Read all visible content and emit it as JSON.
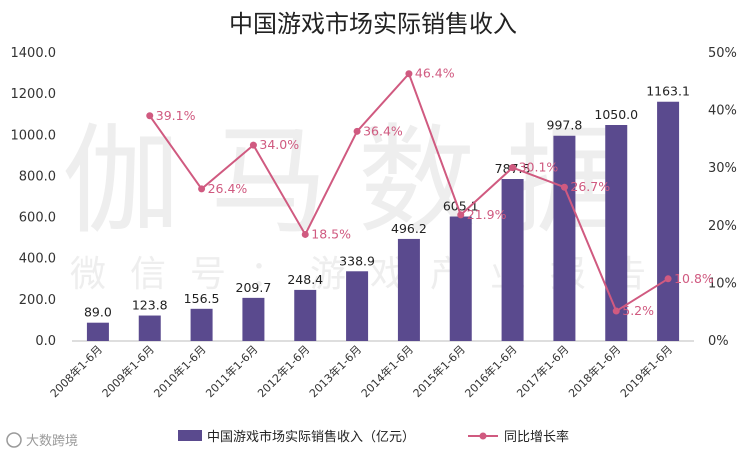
{
  "watermark": {
    "main": "伽马数据",
    "sub": "微信号：游戏产业报告",
    "corner": "大数跨境"
  },
  "chart_data": {
    "type": "bar",
    "title": "中国游戏市场实际销售收入",
    "categories": [
      "2008年1-6月",
      "2009年1-6月",
      "2010年1-6月",
      "2011年1-6月",
      "2012年1-6月",
      "2013年1-6月",
      "2014年1-6月",
      "2015年1-6月",
      "2016年1-6月",
      "2017年1-6月",
      "2018年1-6月",
      "2019年1-6月"
    ],
    "series": [
      {
        "name": "中国游戏市场实际销售收入（亿元）",
        "type": "bar",
        "axis": "left",
        "color": "#5a4a8e",
        "values": [
          89.0,
          123.8,
          156.5,
          209.7,
          248.4,
          338.9,
          496.2,
          605.1,
          787.5,
          997.8,
          1050.0,
          1163.1
        ],
        "labels": [
          "89.0",
          "123.8",
          "156.5",
          "209.7",
          "248.4",
          "338.9",
          "496.2",
          "605.1",
          "787.5",
          "997.8",
          "1050.0",
          "1163.1"
        ]
      },
      {
        "name": "同比增长率",
        "type": "line",
        "axis": "right",
        "color": "#d05a80",
        "values": [
          null,
          39.1,
          26.4,
          34.0,
          18.5,
          36.4,
          46.4,
          21.9,
          30.1,
          26.7,
          5.2,
          10.8
        ],
        "labels": [
          "",
          "39.1%",
          "26.4%",
          "34.0%",
          "18.5%",
          "36.4%",
          "46.4%",
          "21.9%",
          "30.1%",
          "26.7%",
          "5.2%",
          "10.8%"
        ]
      }
    ],
    "ylim_left": [
      0,
      1400
    ],
    "ylim_right": [
      0,
      50
    ],
    "yticks_left": [
      "0.0",
      "200.0",
      "400.0",
      "600.0",
      "800.0",
      "1000.0",
      "1200.0",
      "1400.0"
    ],
    "yticks_right": [
      "0%",
      "10%",
      "20%",
      "30%",
      "40%",
      "50%"
    ],
    "grid": false,
    "legend_position": "bottom"
  }
}
